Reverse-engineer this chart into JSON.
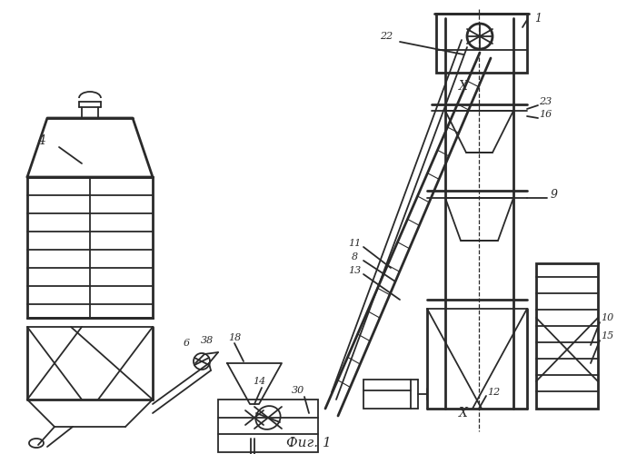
{
  "bg_color": "#ffffff",
  "line_color": "#2a2a2a",
  "lw": 1.3,
  "lw_heavy": 2.0,
  "fig_caption": "Фиг. 1"
}
